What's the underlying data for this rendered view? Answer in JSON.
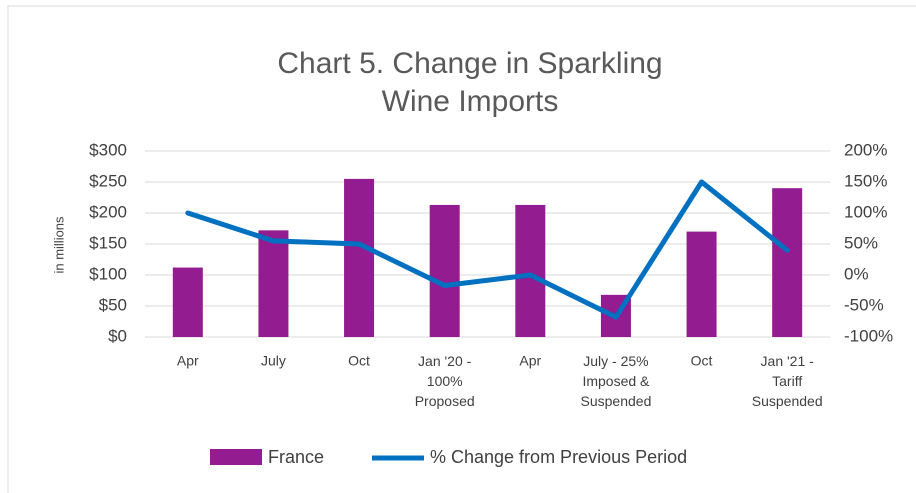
{
  "chart_data": {
    "type": "bar-line",
    "title": "Chart 5. Change in Sparkling\nWine Imports",
    "ylabel": "in millions",
    "categories": [
      "Apr",
      "July",
      "Oct",
      "Jan '20 -\n100%\nProposed",
      "Apr",
      "July - 25%\nImposed &\nSuspended",
      "Oct",
      "Jan '21 -\nTariff\nSuspended"
    ],
    "series": [
      {
        "name": "France",
        "color": "#921c90",
        "kind": "bar",
        "values": [
          112,
          172,
          255,
          213,
          213,
          68,
          170,
          240
        ]
      },
      {
        "name": "% Change from Previous Period",
        "color": "#0070c0",
        "kind": "line",
        "axis": "y2",
        "values": [
          100,
          55,
          50,
          -17,
          0,
          -68,
          150,
          40
        ]
      }
    ],
    "ylim": [
      0,
      300
    ],
    "yticks": [
      {
        "value": 0,
        "label": "$0"
      },
      {
        "value": 50,
        "label": "$50"
      },
      {
        "value": 100,
        "label": "$100"
      },
      {
        "value": 150,
        "label": "$150"
      },
      {
        "value": 200,
        "label": "$200"
      },
      {
        "value": 250,
        "label": "$250"
      },
      {
        "value": 300,
        "label": "$300"
      }
    ],
    "y2lim": [
      -100,
      200
    ],
    "y2ticks": [
      {
        "value": -100,
        "label": "-100%"
      },
      {
        "value": -50,
        "label": "-50%"
      },
      {
        "value": 0,
        "label": "0%"
      },
      {
        "value": 50,
        "label": "50%"
      },
      {
        "value": 100,
        "label": "100%"
      },
      {
        "value": 150,
        "label": "150%"
      },
      {
        "value": 200,
        "label": "200%"
      }
    ],
    "grid": true,
    "legend": "bottom"
  }
}
